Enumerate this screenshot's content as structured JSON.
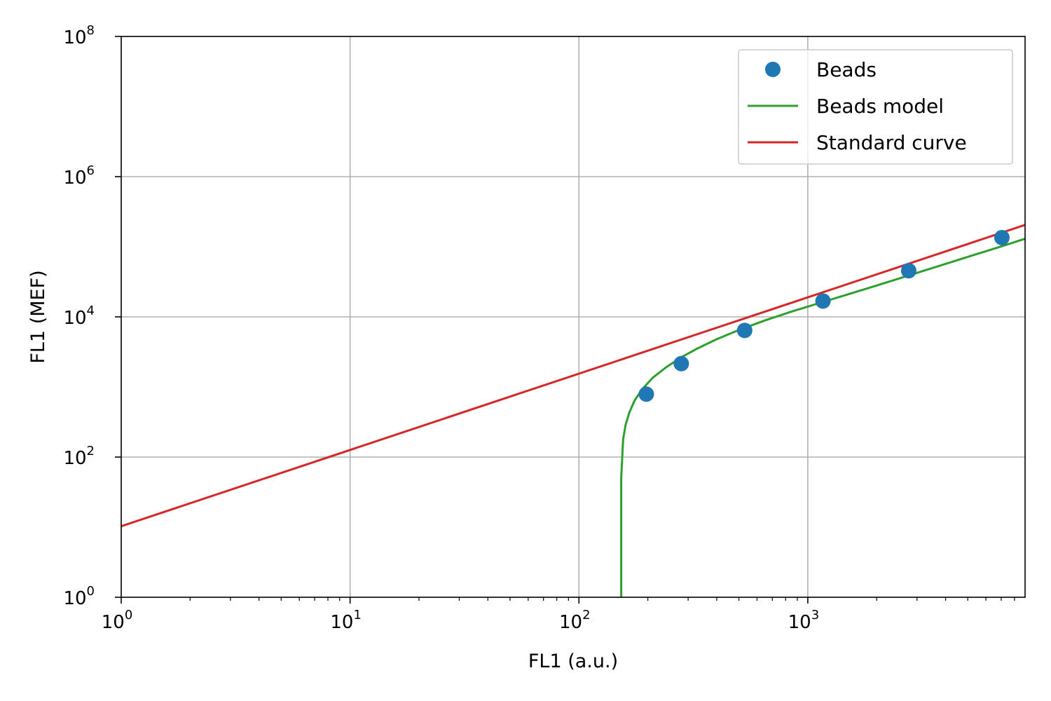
{
  "chart_data": {
    "type": "scatter",
    "title": "",
    "xlabel": "FL1 (a.u.)",
    "ylabel": "FL1 (MEF)",
    "xscale": "log",
    "yscale": "log",
    "xlim": [
      1,
      8900
    ],
    "ylim": [
      1,
      100000000
    ],
    "x_ticks": [
      {
        "base": "10",
        "exp": "0",
        "value": 1
      },
      {
        "base": "10",
        "exp": "1",
        "value": 10
      },
      {
        "base": "10",
        "exp": "2",
        "value": 100
      },
      {
        "base": "10",
        "exp": "3",
        "value": 1000
      }
    ],
    "y_ticks": [
      {
        "base": "10",
        "exp": "0",
        "value": 1
      },
      {
        "base": "10",
        "exp": "2",
        "value": 100
      },
      {
        "base": "10",
        "exp": "4",
        "value": 10000
      },
      {
        "base": "10",
        "exp": "6",
        "value": 1000000
      },
      {
        "base": "10",
        "exp": "8",
        "value": 100000000
      }
    ],
    "grid": true,
    "legend_position": "top-right",
    "series": [
      {
        "name": "Beads",
        "kind": "scatter",
        "color": "#1f77b4",
        "x": [
          197,
          280,
          530,
          1165,
          2760,
          7050
        ],
        "y": [
          790,
          2150,
          6400,
          16800,
          45500,
          135000
        ]
      },
      {
        "name": "Beads model",
        "kind": "line",
        "color": "#2ca02c",
        "x": [
          153,
          153,
          156,
          160,
          166,
          175,
          190,
          210,
          240,
          280,
          330,
          400,
          500,
          650,
          850,
          1100,
          1500,
          2000,
          2800,
          4000,
          5500,
          7000,
          8900
        ],
        "y": [
          1,
          50,
          180,
          290,
          430,
          640,
          950,
          1350,
          1900,
          2650,
          3550,
          4800,
          6500,
          8900,
          11900,
          15400,
          21000,
          28000,
          39500,
          57000,
          79000,
          101000,
          130000
        ]
      },
      {
        "name": "Standard curve",
        "kind": "line",
        "color": "#d62728",
        "x": [
          1,
          8900
        ],
        "y": [
          10.3,
          205000
        ]
      }
    ]
  }
}
